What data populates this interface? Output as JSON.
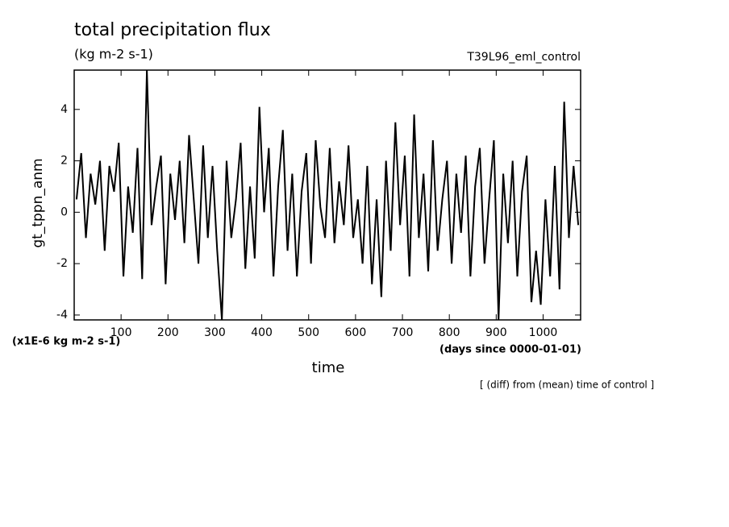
{
  "chart_data": {
    "type": "line",
    "title": "total precipitation flux",
    "subtitle": "(kg m-2 s-1)",
    "experiment": "T39L96_eml_control",
    "y_label": "gt_tppn_anm",
    "y_units": "(x1E-6 kg m-2 s-1)",
    "x_label": "time",
    "x_units": "(days since 0000-01-01)",
    "note": "[ (diff) from (mean) time of control ]",
    "color": "#000000",
    "xlim": [
      0,
      1080
    ],
    "ylim": [
      -4.19,
      5.53
    ],
    "xticks": [
      100,
      200,
      300,
      400,
      500,
      600,
      700,
      800,
      900,
      1000
    ],
    "yticks": [
      -4,
      -2,
      0,
      2,
      4
    ],
    "x": [
      5,
      15,
      25,
      35,
      45,
      55,
      65,
      75,
      85,
      95,
      105,
      115,
      125,
      135,
      145,
      155,
      165,
      175,
      185,
      195,
      205,
      215,
      225,
      235,
      245,
      255,
      265,
      275,
      285,
      295,
      305,
      315,
      325,
      335,
      345,
      355,
      365,
      375,
      385,
      395,
      405,
      415,
      425,
      435,
      445,
      455,
      465,
      475,
      485,
      495,
      505,
      515,
      525,
      535,
      545,
      555,
      565,
      575,
      585,
      595,
      605,
      615,
      625,
      635,
      645,
      655,
      665,
      675,
      685,
      695,
      705,
      715,
      725,
      735,
      745,
      755,
      765,
      775,
      785,
      795,
      805,
      815,
      825,
      835,
      845,
      855,
      865,
      875,
      885,
      895,
      905,
      915,
      925,
      935,
      945,
      955,
      965,
      975,
      985,
      995,
      1005,
      1015,
      1025,
      1035,
      1045,
      1055,
      1065,
      1075
    ],
    "values": [
      0.5,
      2.3,
      -1.0,
      1.5,
      0.3,
      2.0,
      -1.5,
      1.8,
      0.8,
      2.7,
      -2.5,
      1.0,
      -0.8,
      2.5,
      -2.6,
      5.53,
      -0.5,
      1.0,
      2.2,
      -2.8,
      1.5,
      -0.3,
      2.0,
      -1.2,
      3.0,
      0.5,
      -2.0,
      2.6,
      -1.0,
      1.8,
      -1.5,
      -4.19,
      2.0,
      -1.0,
      0.5,
      2.7,
      -2.2,
      1.0,
      -1.8,
      4.1,
      0.0,
      2.5,
      -2.5,
      1.0,
      3.2,
      -1.5,
      1.5,
      -2.5,
      0.8,
      2.3,
      -2.0,
      2.8,
      0.2,
      -1.0,
      2.5,
      -1.2,
      1.2,
      -0.5,
      2.6,
      -1.0,
      0.5,
      -2.0,
      1.8,
      -2.8,
      0.5,
      -3.3,
      2.0,
      -1.5,
      3.5,
      -0.5,
      2.2,
      -2.5,
      3.8,
      -1.0,
      1.5,
      -2.3,
      2.8,
      -1.5,
      0.5,
      2.0,
      -2.0,
      1.5,
      -0.8,
      2.2,
      -2.5,
      1.0,
      2.5,
      -2.0,
      0.5,
      2.8,
      -4.19,
      1.5,
      -1.2,
      2.0,
      -2.5,
      0.8,
      2.2,
      -3.5,
      -1.5,
      -3.6,
      0.5,
      -2.5,
      1.8,
      -3.0,
      4.3,
      -1.0,
      1.8,
      -0.5
    ]
  }
}
